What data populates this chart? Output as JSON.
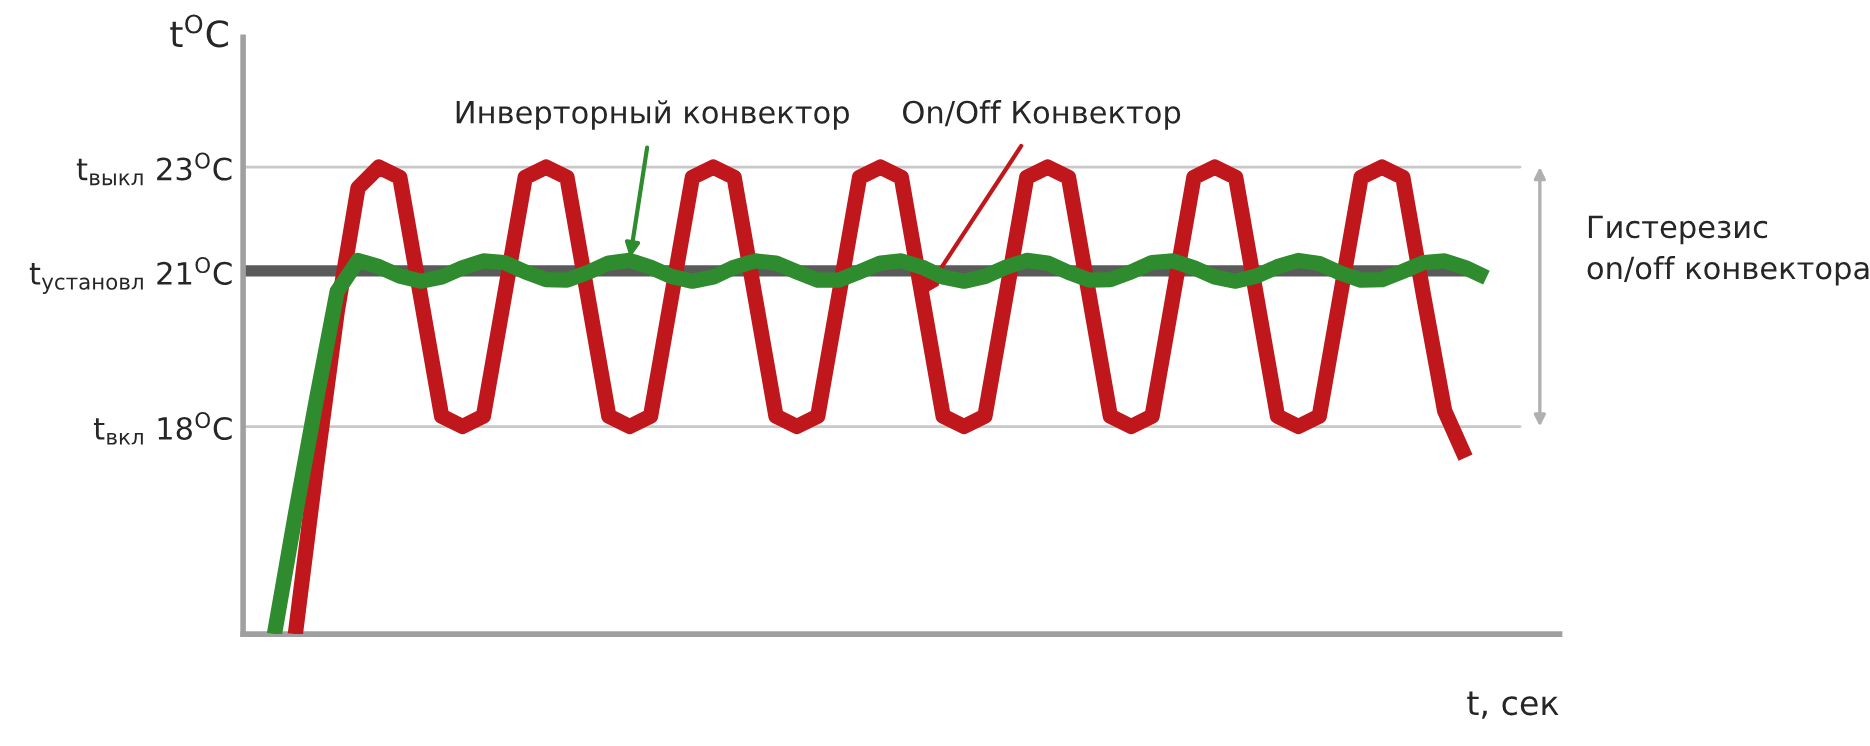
{
  "chart_data": {
    "type": "line",
    "ylabel": "t$^{O}$C",
    "xlabel": "t, сек",
    "categories": [
      null,
      null,
      null,
      null,
      null,
      null,
      null,
      null,
      null,
      null,
      null,
      null,
      null,
      null,
      null,
      null,
      null,
      null,
      null,
      null,
      null,
      null,
      null,
      null,
      null,
      null,
      null,
      null,
      null,
      null,
      null,
      null,
      null,
      null,
      null,
      null,
      null,
      null,
      null,
      null,
      null,
      null,
      null,
      null,
      null,
      null,
      null,
      null,
      null,
      null,
      null,
      null,
      null,
      null,
      null,
      null,
      null,
      null,
      null,
      null,
      null,
      null,
      null
    ],
    "ylim": [
      14,
      25.5
    ],
    "yticks": [
      {
        "value": 18,
        "label": "t$_{вкл}$ 18$^{O}$C"
      },
      {
        "value": 21,
        "label": "t$_{установл}$ 21$^{O}$C"
      },
      {
        "value": 23,
        "label": "t$_{выкл}$ 23$^{O}$C"
      }
    ],
    "series": [
      {
        "name": "On/Off Конвектор",
        "color": "#c0171c",
        "values": [
          null,
          null,
          14,
          17.2,
          20.2,
          22.6,
          23,
          22.8,
          20.5,
          18.2,
          18,
          18.2,
          20.5,
          22.8,
          23,
          22.8,
          20.5,
          18.2,
          18,
          18.2,
          20.5,
          22.8,
          23,
          22.8,
          20.5,
          18.2,
          18,
          18.2,
          20.5,
          22.8,
          23,
          22.8,
          20.5,
          18.2,
          18,
          18.2,
          20.5,
          22.8,
          23,
          22.8,
          20.5,
          18.2,
          18,
          18.2,
          20.5,
          22.8,
          23,
          22.8,
          20.5,
          18.2,
          18,
          18.2,
          20.5,
          22.8,
          23,
          22.8,
          20.5,
          18.3,
          17.4,
          null,
          null,
          null,
          null
        ]
      },
      {
        "name": "Инверторный конвектор",
        "color": "#2e8b2e",
        "values": [
          null,
          14,
          16.3,
          18.5,
          20.6,
          21.2,
          21.08,
          20.9,
          20.8,
          20.88,
          21.06,
          21.19,
          21.16,
          20.98,
          20.83,
          20.82,
          20.97,
          21.15,
          21.2,
          21.07,
          20.89,
          20.8,
          20.88,
          21.07,
          21.19,
          21.15,
          20.98,
          20.82,
          20.82,
          20.98,
          21.15,
          21.19,
          21.07,
          20.88,
          20.8,
          20.89,
          21.07,
          21.2,
          21.15,
          20.97,
          20.82,
          20.83,
          20.98,
          21.16,
          21.19,
          21.06,
          20.88,
          20.8,
          20.9,
          21.08,
          21.2,
          21.14,
          20.96,
          20.82,
          20.83,
          20.99,
          21.16,
          21.19,
          21.06,
          20.87,
          null,
          null,
          null
        ]
      }
    ],
    "ref_lines": [
      {
        "axis": "y",
        "value": 21,
        "color": "#5a5a5a"
      },
      {
        "axis": "y",
        "value": 23,
        "color": "#c8c8c8"
      },
      {
        "axis": "y",
        "value": 18,
        "color": "#c8c8c8"
      }
    ],
    "annotations": [
      "Гистерезис\non/off конвектора"
    ],
    "grid": false,
    "legend": false,
    "marker": "none",
    "line_style": "solid"
  }
}
